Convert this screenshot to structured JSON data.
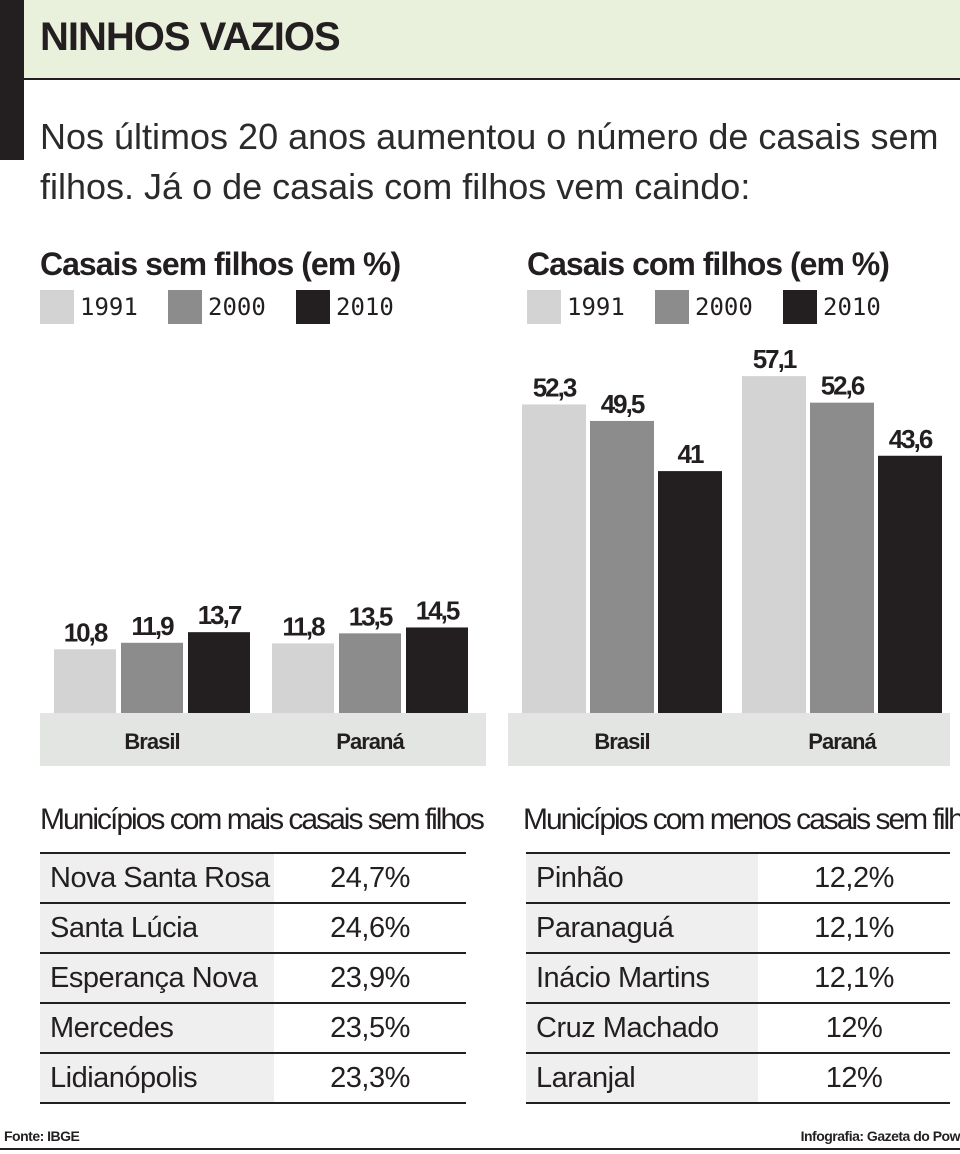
{
  "header": {
    "title": "NINHOS VAZIOS",
    "intro": "Nos últimos 20 anos aumentou o número de casais sem filhos. Já o de casais com filhos vem caindo:"
  },
  "colors": {
    "1991": "#d3d3d3",
    "2000": "#8c8c8c",
    "2010": "#231f20",
    "band": "#e3e5e3",
    "header_bg": "#e9f0dc"
  },
  "chart_data": [
    {
      "type": "bar",
      "title": "Casais sem filhos (em %)",
      "categories": [
        "Brasil",
        "Paraná"
      ],
      "series": [
        {
          "name": "1991",
          "values": [
            10.8,
            11.8
          ],
          "labels": [
            "10,8",
            "11,8"
          ]
        },
        {
          "name": "2000",
          "values": [
            11.9,
            13.5
          ],
          "labels": [
            "11,9",
            "13,5"
          ]
        },
        {
          "name": "2010",
          "values": [
            13.7,
            14.5
          ],
          "labels": [
            "13,7",
            "14,5"
          ]
        }
      ],
      "legend": "top-left",
      "grid": false
    },
    {
      "type": "bar",
      "title": "Casais com filhos (em %)",
      "categories": [
        "Brasil",
        "Paraná"
      ],
      "series": [
        {
          "name": "1991",
          "values": [
            52.3,
            57.1
          ],
          "labels": [
            "52,3",
            "57,1"
          ]
        },
        {
          "name": "2000",
          "values": [
            49.5,
            52.6
          ],
          "labels": [
            "49,5",
            "52,6"
          ]
        },
        {
          "name": "2010",
          "values": [
            41,
            43.6
          ],
          "labels": [
            "41",
            "43,6"
          ]
        }
      ],
      "legend": "top-left",
      "grid": false
    }
  ],
  "tables": {
    "mais": {
      "title": "Municípios com mais casais sem filhos",
      "rows": [
        {
          "name": "Nova Santa Rosa",
          "value": "24,7%"
        },
        {
          "name": "Santa Lúcia",
          "value": "24,6%"
        },
        {
          "name": "Esperança Nova",
          "value": "23,9%"
        },
        {
          "name": "Mercedes",
          "value": "23,5%"
        },
        {
          "name": "Lidianópolis",
          "value": "23,3%"
        }
      ]
    },
    "menos": {
      "title": "Municípios com menos casais sem filhos",
      "rows": [
        {
          "name": "Pinhão",
          "value": "12,2%"
        },
        {
          "name": "Paranaguá",
          "value": "12,1%"
        },
        {
          "name": "Inácio Martins",
          "value": "12,1%"
        },
        {
          "name": "Cruz Machado",
          "value": "12%"
        },
        {
          "name": "Laranjal",
          "value": "12%"
        }
      ]
    }
  },
  "footer": {
    "source": "Fonte: IBGE",
    "credit": "Infografia: Gazeta do Pow"
  }
}
